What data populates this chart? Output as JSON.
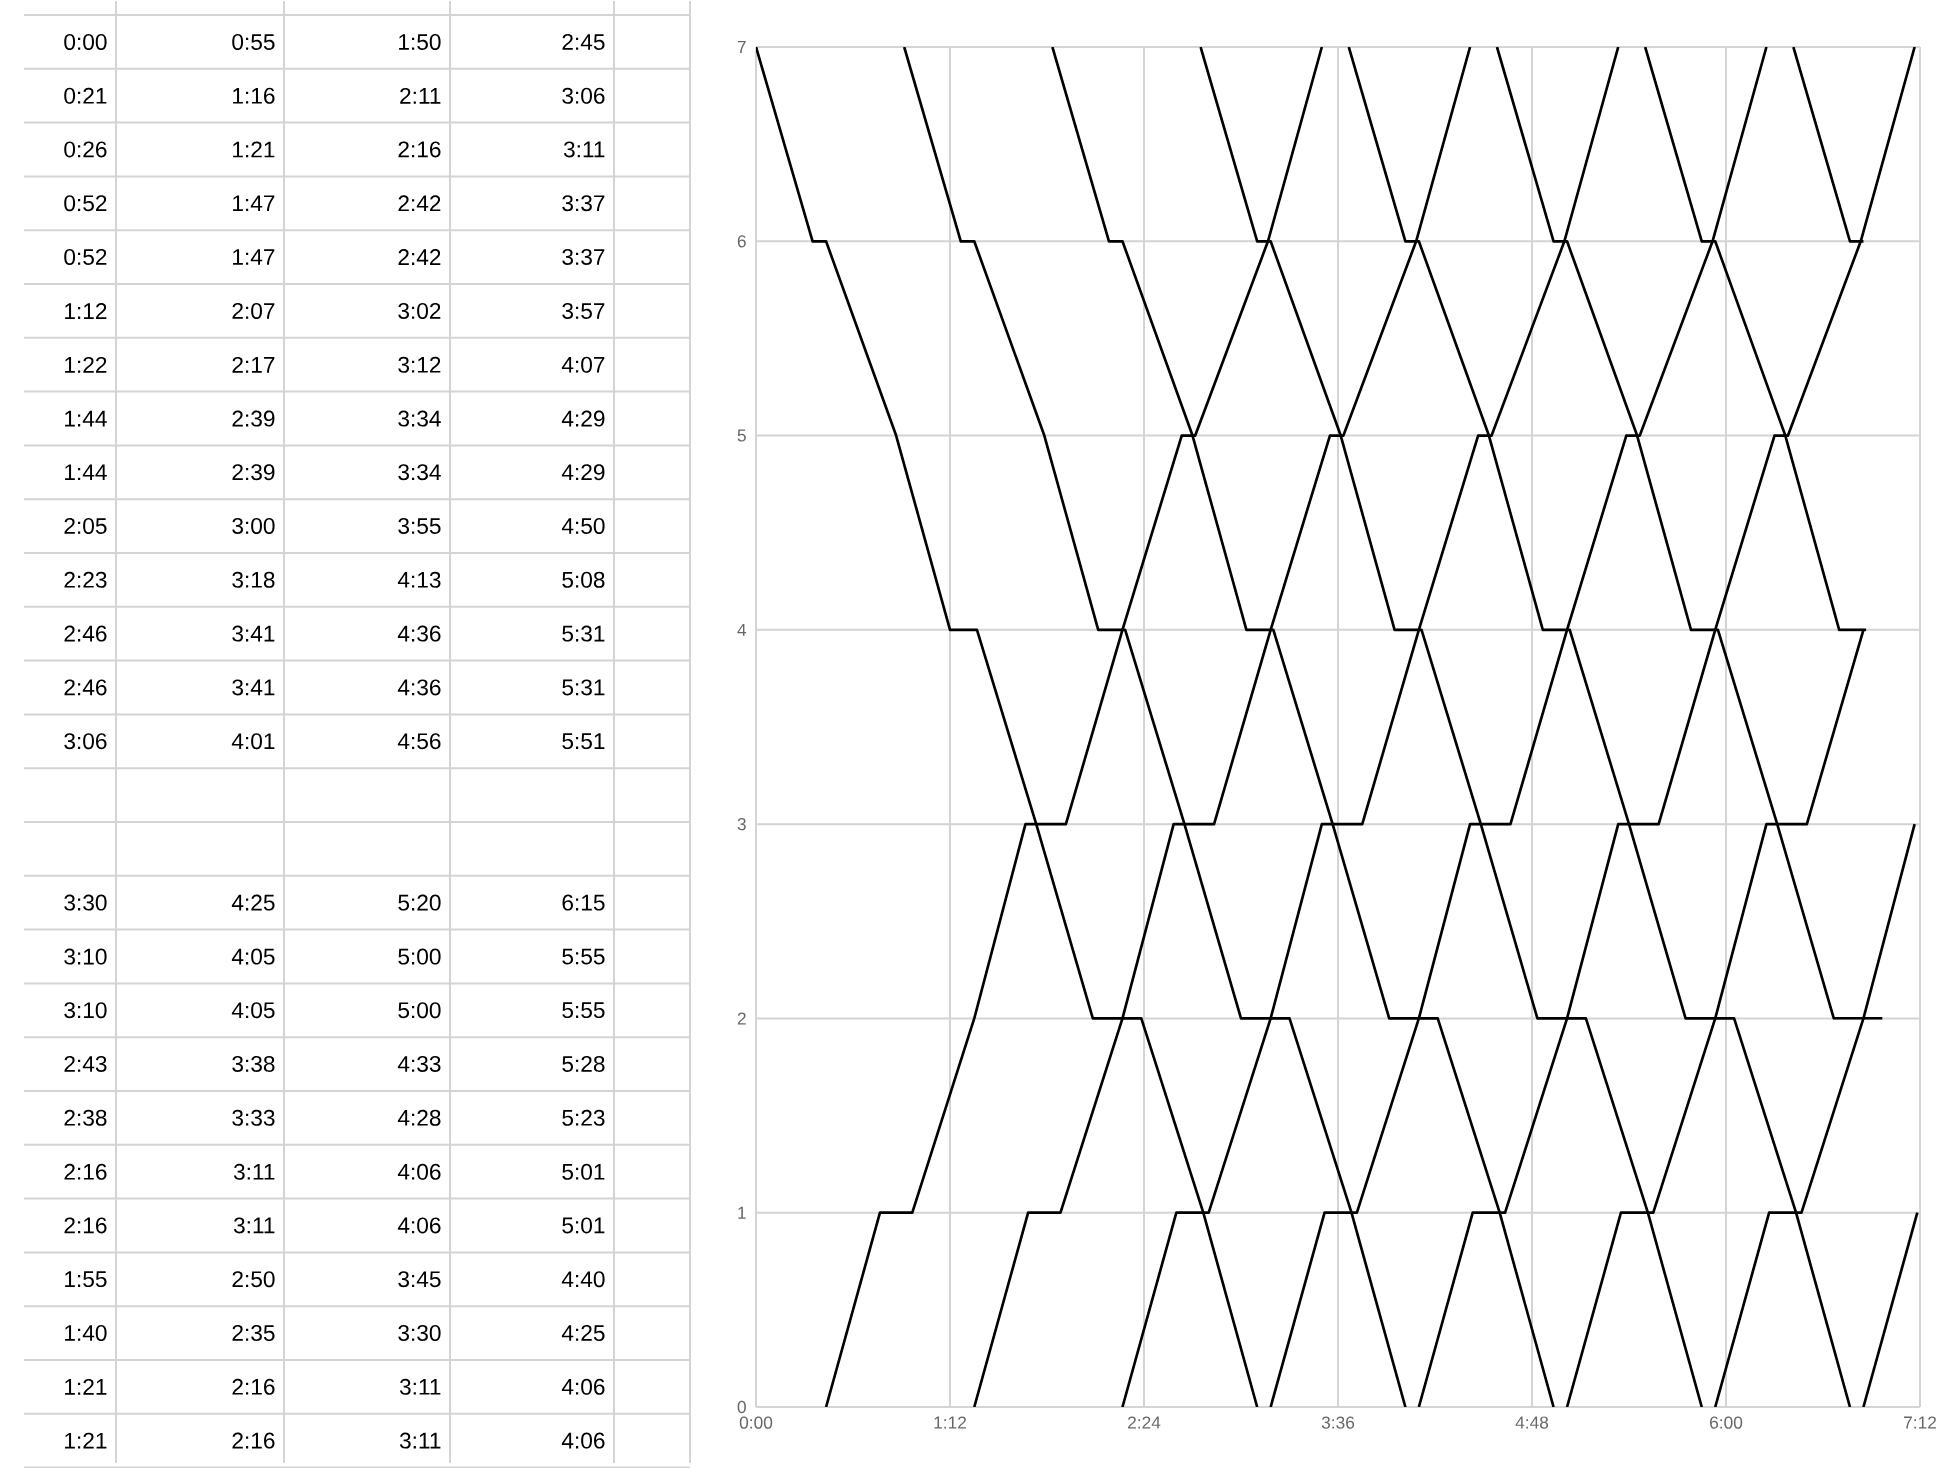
{
  "chart_data": {
    "type": "line",
    "xlim": [
      0,
      7.2
    ],
    "ylim": [
      0,
      7
    ],
    "xticks": [
      {
        "value": 0,
        "label": "0:00"
      },
      {
        "value": 1.2,
        "label": "1:12"
      },
      {
        "value": 2.4,
        "label": "2:24"
      },
      {
        "value": 3.6,
        "label": "3:36"
      },
      {
        "value": 4.8,
        "label": "4:48"
      },
      {
        "value": 6.0,
        "label": "6:00"
      },
      {
        "value": 7.2,
        "label": "7:12"
      }
    ],
    "yticks": [
      0,
      1,
      2,
      3,
      4,
      5,
      6,
      7
    ],
    "grid": true,
    "series": [
      {
        "color": "#000000",
        "x": [
          0,
          0.35,
          0.4333,
          0.8667,
          1.2,
          1.3667,
          1.7333,
          2.0833,
          2.3833,
          2.7667,
          3.1
        ],
        "values": [
          7,
          6,
          6,
          5,
          4,
          4,
          3,
          2,
          2,
          1,
          0
        ]
      },
      {
        "color": "#000000",
        "x": [
          0.9167,
          1.2667,
          1.35,
          1.7833,
          2.1167,
          2.2833,
          2.65,
          3.0,
          3.3,
          3.6833,
          4.0167
        ],
        "values": [
          7,
          6,
          6,
          5,
          4,
          4,
          3,
          2,
          2,
          1,
          0
        ]
      },
      {
        "color": "#000000",
        "x": [
          1.8333,
          2.1833,
          2.2667,
          2.7,
          3.0333,
          3.2,
          3.5667,
          3.9167,
          4.2167,
          4.6,
          4.9333
        ],
        "values": [
          7,
          6,
          6,
          5,
          4,
          4,
          3,
          2,
          2,
          1,
          0
        ]
      },
      {
        "color": "#000000",
        "x": [
          2.75,
          3.1,
          3.1833,
          3.6167,
          3.95,
          4.1167,
          4.4833,
          4.8333,
          5.1333,
          5.5167,
          5.85
        ],
        "values": [
          7,
          6,
          6,
          5,
          4,
          4,
          3,
          2,
          2,
          1,
          0
        ]
      },
      {
        "color": "#000000",
        "x": [
          3.6667,
          4.0167,
          4.1,
          4.5333,
          4.8667,
          5.0333,
          5.4,
          5.75,
          6.05,
          6.4333,
          6.7667
        ],
        "values": [
          7,
          6,
          6,
          5,
          4,
          4,
          3,
          2,
          2,
          1,
          0
        ]
      },
      {
        "color": "#000000",
        "x": [
          4.5833,
          4.9333,
          5.0167,
          5.45,
          5.7833,
          5.95,
          6.3167,
          6.6667,
          6.9667
        ],
        "values": [
          7,
          6,
          6,
          5,
          4,
          4,
          3,
          2,
          2
        ]
      },
      {
        "color": "#000000",
        "x": [
          5.5,
          5.85,
          5.9333,
          6.3667,
          6.7,
          6.8667
        ],
        "values": [
          7,
          6,
          6,
          5,
          4,
          4
        ]
      },
      {
        "color": "#000000",
        "x": [
          6.4167,
          6.7667,
          6.85
        ],
        "values": [
          7,
          6,
          6
        ]
      },
      {
        "color": "#000000",
        "x": [
          0.4333,
          0.7667,
          0.9667,
          1.35,
          1.6667,
          1.9167,
          2.2667,
          2.6333,
          2.7167,
          3.1667,
          3.5
        ],
        "values": [
          0,
          1,
          1,
          2,
          3,
          3,
          4,
          5,
          5,
          6,
          7
        ]
      },
      {
        "color": "#000000",
        "x": [
          1.35,
          1.6833,
          1.8833,
          2.2667,
          2.5833,
          2.8333,
          3.1833,
          3.55,
          3.6333,
          4.0833,
          4.4167
        ],
        "values": [
          0,
          1,
          1,
          2,
          3,
          3,
          4,
          5,
          5,
          6,
          7
        ]
      },
      {
        "color": "#000000",
        "x": [
          2.2667,
          2.6,
          2.8,
          3.1833,
          3.5,
          3.75,
          4.1,
          4.4667,
          4.55,
          5.0,
          5.3333
        ],
        "values": [
          0,
          1,
          1,
          2,
          3,
          3,
          4,
          5,
          5,
          6,
          7
        ]
      },
      {
        "color": "#000000",
        "x": [
          3.1833,
          3.5167,
          3.7167,
          4.1,
          4.4167,
          4.6667,
          5.0167,
          5.3833,
          5.4667,
          5.9167,
          6.25
        ],
        "values": [
          0,
          1,
          1,
          2,
          3,
          3,
          4,
          5,
          5,
          6,
          7
        ]
      },
      {
        "color": "#000000",
        "x": [
          4.1,
          4.4333,
          4.6333,
          5.0167,
          5.3333,
          5.5833,
          5.9333,
          6.3,
          6.3833,
          6.8333,
          7.1667
        ],
        "values": [
          0,
          1,
          1,
          2,
          3,
          3,
          4,
          5,
          5,
          6,
          7
        ]
      },
      {
        "color": "#000000",
        "x": [
          5.0167,
          5.35,
          5.55,
          5.9333,
          6.25,
          6.5,
          6.85
        ],
        "values": [
          0,
          1,
          1,
          2,
          3,
          3,
          4
        ]
      },
      {
        "color": "#000000",
        "x": [
          5.9333,
          6.2667,
          6.4667,
          6.85,
          7.1667
        ],
        "values": [
          0,
          1,
          1,
          2,
          3
        ]
      },
      {
        "color": "#000000",
        "x": [
          6.85,
          7.1833
        ],
        "values": [
          0,
          1
        ]
      }
    ],
    "annotations": [
      "0:00",
      "0:55",
      "1:50",
      "2:45",
      "0:21",
      "1:16",
      "2:11",
      "3:06",
      "0:26",
      "1:21",
      "2:16",
      "3:11",
      "0:52",
      "1:47",
      "2:42",
      "3:37",
      "0:52",
      "1:47",
      "2:42",
      "3:37",
      "1:12",
      "2:07",
      "3:02",
      "3:57",
      "1:22",
      "2:17",
      "3:12",
      "4:07",
      "1:44",
      "2:39",
      "3:34",
      "4:29",
      "1:44",
      "2:39",
      "3:34",
      "4:29",
      "2:05",
      "3:00",
      "3:55",
      "4:50",
      "2:23",
      "3:18",
      "4:13",
      "5:08",
      "2:46",
      "3:41",
      "4:36",
      "5:31",
      "2:46",
      "3:41",
      "4:36",
      "5:31",
      "3:06",
      "4:01",
      "4:56",
      "5:51",
      "3:30",
      "4:25",
      "5:20",
      "6:15",
      "3:10",
      "4:05",
      "5:00",
      "5:55",
      "3:10",
      "4:05",
      "5:00",
      "5:55",
      "2:43",
      "3:38",
      "4:33",
      "5:28",
      "2:38",
      "3:33",
      "4:28",
      "5:23",
      "2:16",
      "3:11",
      "4:06",
      "5:01",
      "2:16",
      "3:11",
      "4:06",
      "5:01",
      "1:55",
      "2:50",
      "3:45",
      "4:40",
      "1:40",
      "2:35",
      "3:30",
      "4:25",
      "1:21",
      "2:16",
      "3:11",
      "4:06",
      "1:21",
      "2:16",
      "3:11",
      "4:06"
    ]
  }
}
